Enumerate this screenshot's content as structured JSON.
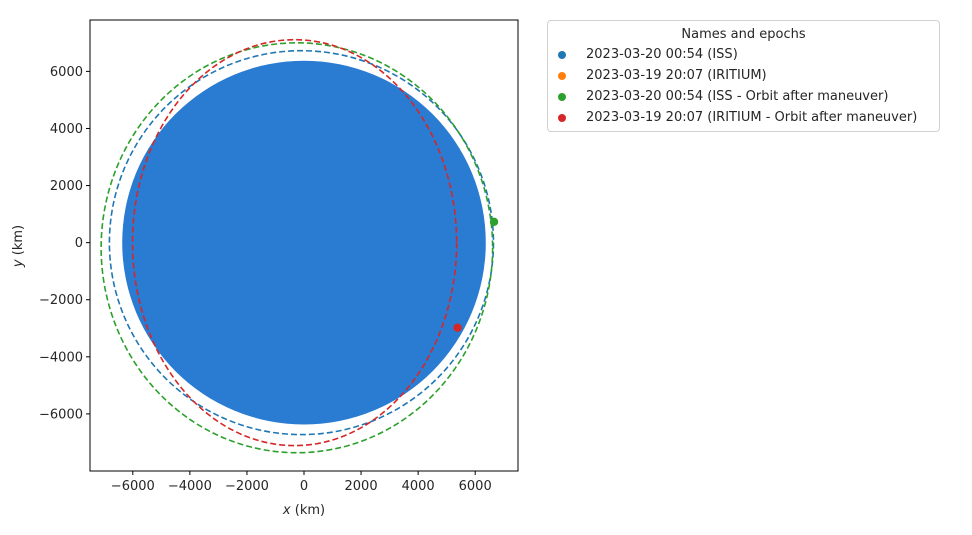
{
  "chart_data": {
    "type": "scatter",
    "xlabel": "x (km)",
    "ylabel": "y (km)",
    "xlim": [
      -7500,
      7500
    ],
    "ylim": [
      -8000,
      7800
    ],
    "xticks": [
      -6000,
      -4000,
      -2000,
      0,
      2000,
      4000,
      6000
    ],
    "yticks": [
      -6000,
      -4000,
      -2000,
      0,
      2000,
      4000,
      6000
    ],
    "tick_labels_x": [
      "−6000",
      "−4000",
      "−2000",
      "0",
      "2000",
      "4000",
      "6000"
    ],
    "tick_labels_y": [
      "−6000",
      "−4000",
      "−2000",
      "0",
      "2000",
      "4000",
      "6000"
    ],
    "grid": false,
    "attractor": {
      "radius": 6371,
      "color": "#2a7bd2"
    },
    "legend": {
      "title": "Names and epochs",
      "placement": "outside-top-right"
    },
    "series": [
      {
        "name": "2023-03-20 00:54 (ISS)",
        "color": "#1f77b4",
        "position": [
          6660,
          700
        ],
        "show_position": false,
        "orbit": {
          "a": 6730,
          "b": 6725,
          "cx": -90,
          "cy": 0
        }
      },
      {
        "name": "2023-03-19 20:07 (IRITIUM)",
        "color": "#ff7f0e",
        "position": [
          5380,
          -2980
        ],
        "show_position": false,
        "orbit": null
      },
      {
        "name": "2023-03-20 00:54 (ISS - Orbit after maneuver)",
        "color": "#2ca02c",
        "position": [
          6660,
          730
        ],
        "show_position": true,
        "orbit": {
          "a": 6860,
          "b": 7180,
          "cx": -250,
          "cy": -180
        }
      },
      {
        "name": "2023-03-19 20:07 (IRITIUM - Orbit after maneuver)",
        "color": "#d62728",
        "position": [
          5380,
          -2980
        ],
        "show_position": true,
        "orbit": {
          "a": 5680,
          "b": 7110,
          "cx": -330,
          "cy": 0
        }
      }
    ]
  }
}
